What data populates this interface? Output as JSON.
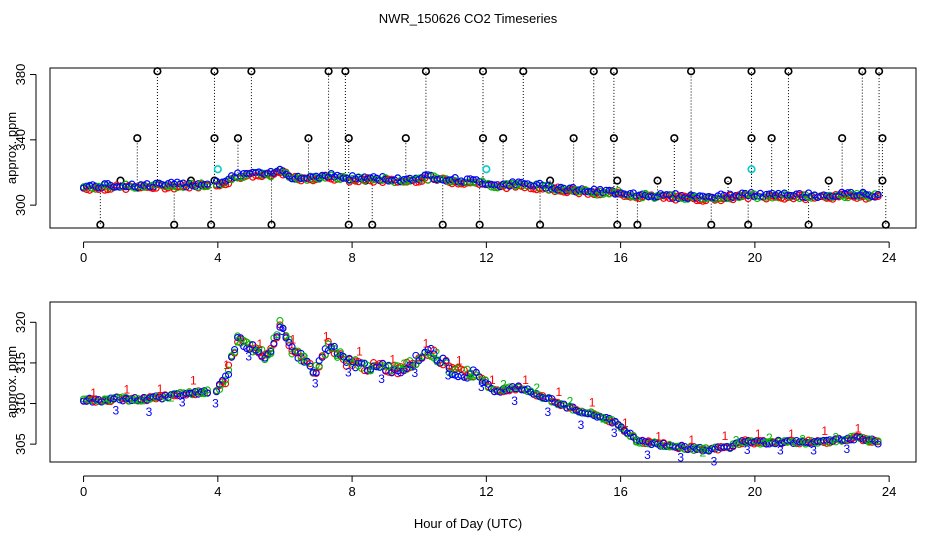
{
  "title": "NWR_150626  CO2 Timeseries",
  "xlabel": "Hour of Day (UTC)",
  "colors": {
    "axis": "#000000",
    "series1": "#ff0000",
    "series2": "#00bb00",
    "series3": "#0000ff",
    "flag": "#00cccc",
    "outlier": "#000000"
  },
  "chart_data": [
    {
      "type": "scatter",
      "title": "NWR_150626  CO2 Timeseries",
      "xlabel": "",
      "ylabel": "approx. ppm",
      "xlim": [
        -1,
        24.8
      ],
      "ylim": [
        286,
        384
      ],
      "xticks": [
        0,
        4,
        8,
        12,
        16,
        20,
        24
      ],
      "yticks": [
        300,
        340,
        380
      ],
      "baseline_hours": [
        0,
        0.5,
        1,
        1.5,
        2,
        2.5,
        3,
        3.5,
        3.9,
        4.2,
        4.6,
        5.0,
        5.5,
        5.9,
        6.2,
        6.6,
        6.9,
        7.3,
        7.8,
        8.5,
        9.5,
        10.3,
        11.0,
        11.8,
        12.2,
        13.0,
        13.8,
        14.6,
        15.4,
        15.9,
        16.5,
        17.5,
        18.5,
        19.2,
        19.7,
        20.0,
        21.0,
        22.0,
        23.0,
        23.7
      ],
      "baseline_values": [
        311,
        311,
        311.5,
        311.5,
        311.5,
        312,
        312,
        312.5,
        313,
        314,
        318,
        319,
        318,
        321,
        317,
        316,
        317,
        318,
        316,
        316,
        315,
        317,
        315,
        314,
        312,
        312.5,
        311,
        309,
        307.5,
        307.5,
        306,
        305,
        304.5,
        305,
        306,
        305.5,
        305.5,
        305.5,
        306,
        305.5
      ],
      "series": [
        {
          "name": "1",
          "color": "#ff0000"
        },
        {
          "name": "2",
          "color": "#00bb00"
        },
        {
          "name": "3",
          "color": "#0000ff"
        }
      ],
      "outliers_high": [
        2.2,
        3.9,
        5.0,
        7.3,
        7.8,
        10.2,
        11.9,
        13.1,
        15.2,
        15.8,
        18.1,
        19.9,
        21.0,
        23.2,
        23.7
      ],
      "outliers_mid": [
        1.6,
        3.9,
        4.6,
        6.7,
        7.9,
        9.6,
        11.9,
        12.5,
        14.6,
        15.8,
        17.6,
        19.9,
        20.5,
        22.6,
        23.8
      ],
      "outliers_low_plus": [
        1.1,
        3.2,
        3.9,
        8.4,
        13.9,
        15.9,
        17.1,
        19.2,
        22.2,
        23.8
      ],
      "outliers_bottom": [
        0.5,
        2.7,
        3.8,
        5.6,
        7.9,
        8.6,
        10.7,
        11.8,
        13.6,
        15.9,
        16.5,
        18.7,
        19.8,
        21.6,
        23.9
      ],
      "flags_cyan": [
        {
          "x": 4.0,
          "y": 322
        },
        {
          "x": 12.0,
          "y": 322
        },
        {
          "x": 19.9,
          "y": 322
        }
      ]
    },
    {
      "type": "scatter",
      "title": "",
      "xlabel": "Hour of Day (UTC)",
      "ylabel": "approx. ppm",
      "xlim": [
        -1,
        24.8
      ],
      "ylim": [
        302.8,
        322.5
      ],
      "xticks": [
        0,
        4,
        8,
        12,
        16,
        20,
        24
      ],
      "yticks": [
        305,
        310,
        315,
        320
      ],
      "baseline_hours": [
        0,
        0.5,
        1,
        1.5,
        2,
        2.5,
        3,
        3.5,
        3.9,
        4.2,
        4.6,
        5.0,
        5.5,
        5.9,
        6.2,
        6.6,
        6.9,
        7.3,
        7.8,
        8.5,
        9.5,
        10.3,
        11.0,
        11.8,
        12.2,
        13.0,
        13.8,
        14.6,
        15.4,
        15.9,
        16.5,
        17.5,
        18.5,
        19.2,
        19.7,
        20.0,
        21.0,
        22.0,
        23.0,
        23.7
      ],
      "baseline_values": [
        310.5,
        310.3,
        310.6,
        310.5,
        310.6,
        310.9,
        311.2,
        311.4,
        311.5,
        312.5,
        318.0,
        316.8,
        315.8,
        320.2,
        316.5,
        315.2,
        314.0,
        317.2,
        315.2,
        314.5,
        314.2,
        316.5,
        314.0,
        313.5,
        311.5,
        312.0,
        310.6,
        309.3,
        308.4,
        307.5,
        305.4,
        304.8,
        304.3,
        304.6,
        305.4,
        305.2,
        305.3,
        305.2,
        305.8,
        305.2
      ],
      "series": [
        {
          "name": "1",
          "color": "#ff0000"
        },
        {
          "name": "2",
          "color": "#00bb00"
        },
        {
          "name": "3",
          "color": "#0000ff"
        }
      ]
    }
  ]
}
